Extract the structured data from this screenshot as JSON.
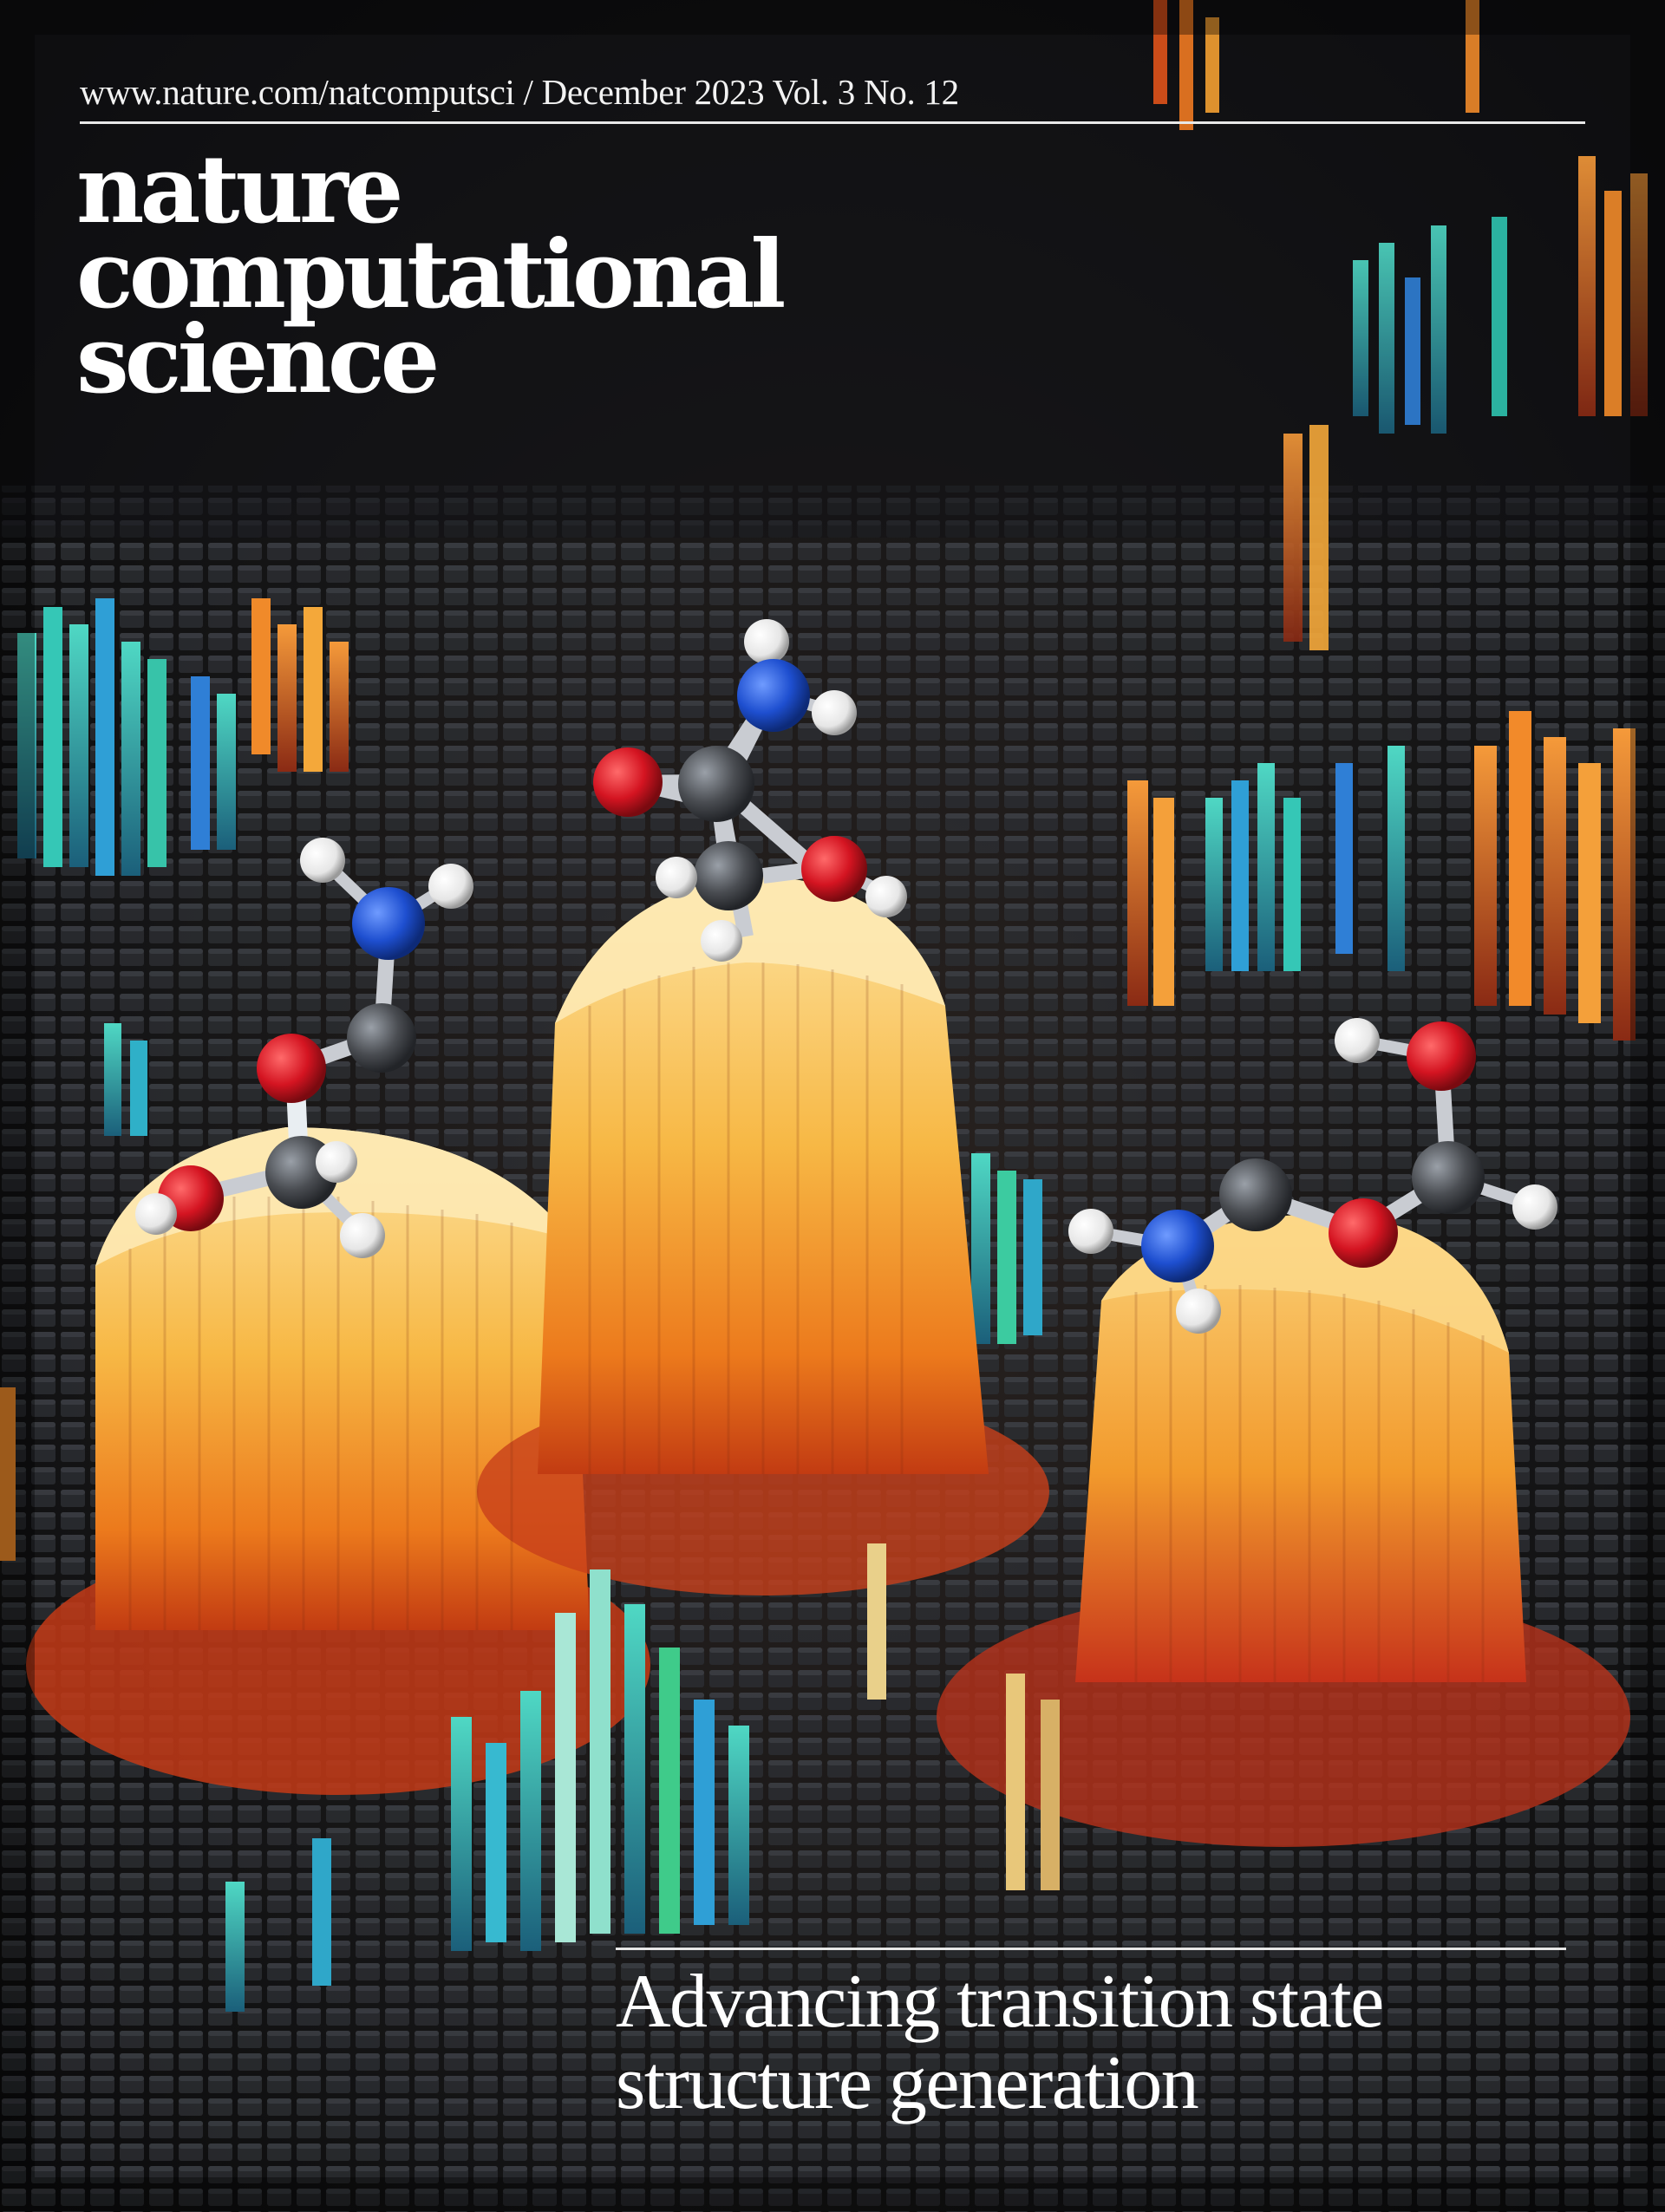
{
  "issue_line": "www.nature.com/natcomputsci / December 2023 Vol. 3 No. 12",
  "masthead": {
    "line1": "nature",
    "line2": "computational",
    "line3": "science"
  },
  "cover_line": {
    "line1": "Advancing transition state",
    "line2": "structure generation"
  },
  "colors": {
    "background": "#0e0e10",
    "text": "#ffffff",
    "peak_orange": "#f5a623",
    "peak_yellow": "#f9d27a",
    "teal": "#2bb3a8",
    "blue": "#2f7fd6",
    "oxygen_red": "#d41421",
    "nitrogen_blue": "#1e4fd0",
    "carbon_grey": "#4a4d52",
    "hydrogen_white": "#f4f4f4"
  },
  "icons": [
    "molecule-left",
    "molecule-middle",
    "molecule-right",
    "voxel-landscape"
  ]
}
